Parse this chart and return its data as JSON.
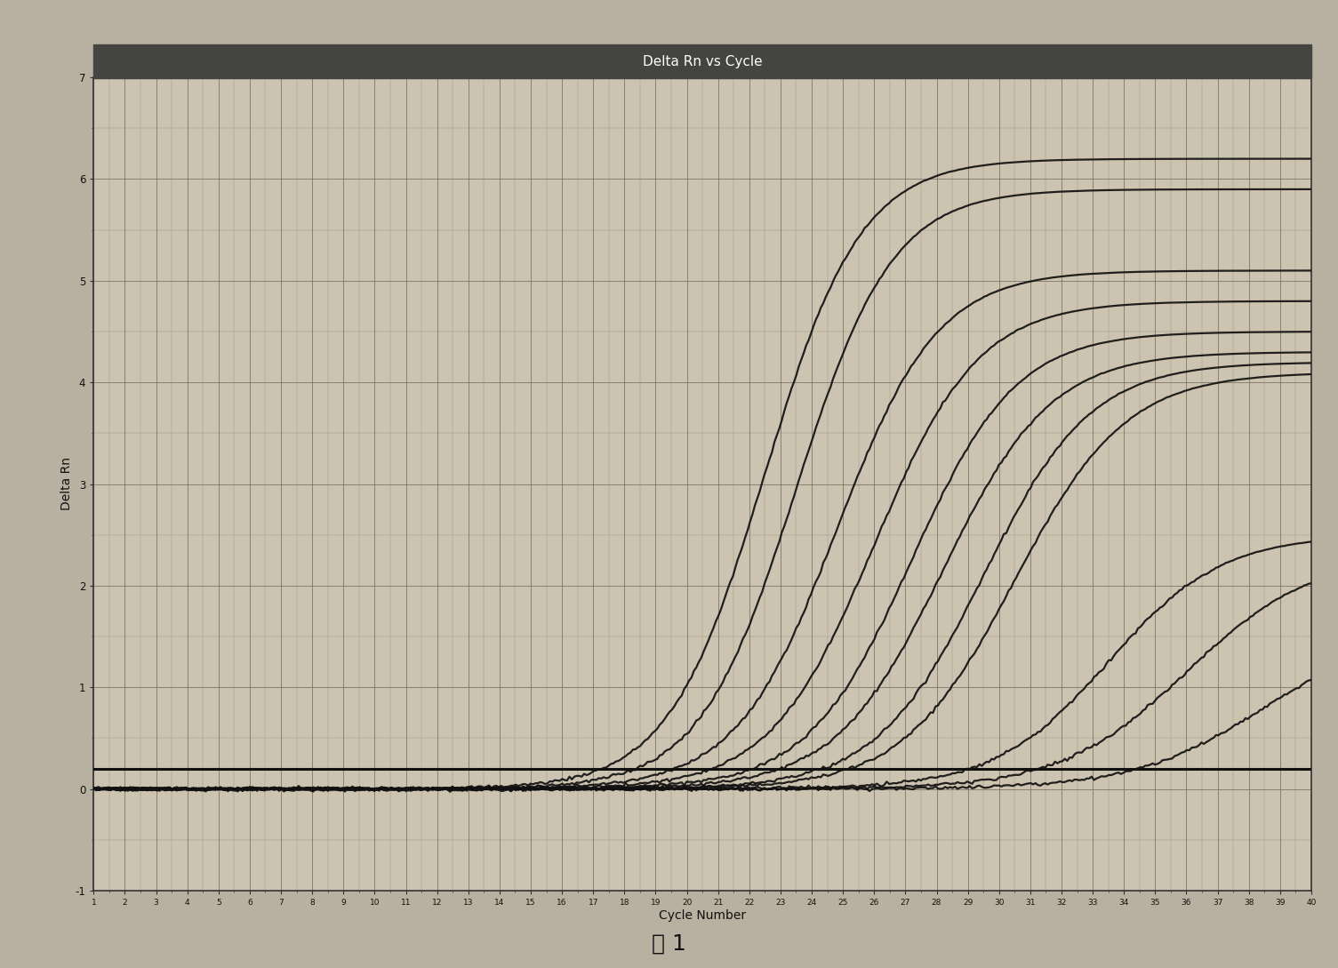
{
  "title": "Delta Rn vs Cycle",
  "xlabel": "Cycle Number",
  "ylabel": "Delta Rn",
  "xlim": [
    1,
    40
  ],
  "ylim": [
    -1,
    7
  ],
  "yticks": [
    -1,
    0,
    1,
    2,
    3,
    4,
    5,
    6,
    7
  ],
  "xticks": [
    1,
    2,
    3,
    4,
    5,
    6,
    7,
    8,
    9,
    10,
    11,
    12,
    13,
    14,
    15,
    16,
    17,
    18,
    19,
    20,
    21,
    22,
    23,
    24,
    25,
    26,
    27,
    28,
    29,
    30,
    31,
    32,
    33,
    34,
    35,
    36,
    37,
    38,
    39,
    40
  ],
  "threshold_y": 0.2,
  "background_color": "#b8b0a0",
  "plot_bg_color": "#ccc4b0",
  "grid_color": "#777060",
  "title_color": "#ffffff",
  "title_bg_color": "#444440",
  "curve_color": "#111111",
  "threshold_color": "#111111",
  "caption": "图 1",
  "curves": [
    {
      "Ct": 22.5,
      "plateau": 6.2,
      "steepness": 0.65
    },
    {
      "Ct": 23.5,
      "plateau": 5.9,
      "steepness": 0.65
    },
    {
      "Ct": 24.8,
      "plateau": 5.1,
      "steepness": 0.62
    },
    {
      "Ct": 26.0,
      "plateau": 4.8,
      "steepness": 0.6
    },
    {
      "Ct": 27.2,
      "plateau": 4.5,
      "steepness": 0.6
    },
    {
      "Ct": 28.2,
      "plateau": 4.3,
      "steepness": 0.58
    },
    {
      "Ct": 29.5,
      "plateau": 4.2,
      "steepness": 0.58
    },
    {
      "Ct": 30.5,
      "plateau": 4.1,
      "steepness": 0.56
    },
    {
      "Ct": 33.5,
      "plateau": 2.5,
      "steepness": 0.55
    },
    {
      "Ct": 36.0,
      "plateau": 2.3,
      "steepness": 0.5
    },
    {
      "Ct": 38.5,
      "plateau": 1.6,
      "steepness": 0.48
    }
  ]
}
